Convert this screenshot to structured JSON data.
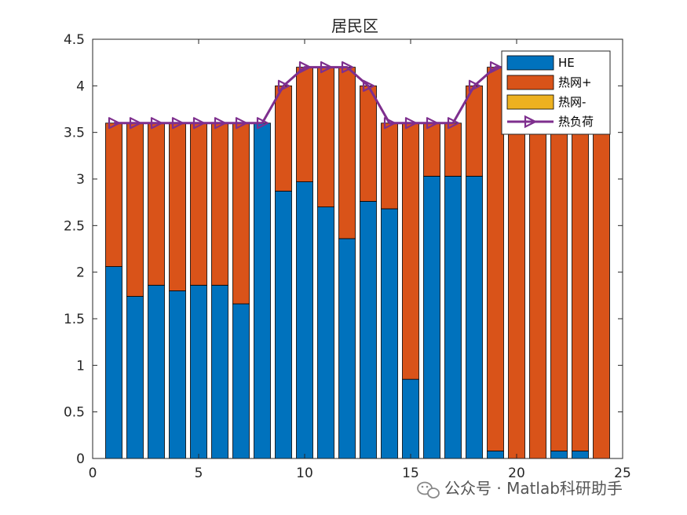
{
  "chart_data": {
    "type": "bar",
    "stacked": true,
    "title": "居民区",
    "x_ticks": [
      0,
      5,
      10,
      15,
      20,
      25
    ],
    "y_ticks": [
      0,
      0.5,
      1,
      1.5,
      2,
      2.5,
      3,
      3.5,
      4,
      4.5
    ],
    "y_tick_labels": [
      "0",
      "0.5",
      "1",
      "1.5",
      "2",
      "2.5",
      "3",
      "3.5",
      "4",
      "4.5"
    ],
    "xlim": [
      0,
      25
    ],
    "ylim": [
      0,
      4.5
    ],
    "x": [
      1,
      2,
      3,
      4,
      5,
      6,
      7,
      8,
      9,
      10,
      11,
      12,
      13,
      14,
      15,
      16,
      17,
      18,
      19,
      20,
      21,
      22,
      23,
      24
    ],
    "series": [
      {
        "name": "HE",
        "kind": "bar",
        "color": "#0072BD",
        "values": [
          2.06,
          1.74,
          1.86,
          1.8,
          1.86,
          1.86,
          1.66,
          3.6,
          2.87,
          2.97,
          2.7,
          2.36,
          2.76,
          2.68,
          0.85,
          3.03,
          3.03,
          3.03,
          0.08,
          0,
          0,
          0.08,
          0.08,
          0
        ]
      },
      {
        "name": "热网+",
        "kind": "bar",
        "color": "#D95319",
        "values": [
          1.54,
          1.86,
          1.74,
          1.8,
          1.74,
          1.74,
          1.94,
          0,
          1.13,
          1.23,
          1.5,
          1.84,
          1.24,
          0.92,
          2.75,
          0.57,
          0.57,
          0.97,
          4.12,
          4.2,
          4.2,
          4.12,
          4.12,
          4.2
        ]
      },
      {
        "name": "热网-",
        "kind": "bar",
        "color": "#EDB120",
        "values": [
          0,
          0,
          0,
          0,
          0,
          0,
          0,
          0,
          0,
          0,
          0,
          0,
          0,
          0,
          0,
          0,
          0,
          0,
          0,
          0,
          0,
          0,
          0,
          0
        ]
      },
      {
        "name": "热负荷",
        "kind": "line",
        "color": "#7E2F8E",
        "marker": "triangle-right",
        "values": [
          3.6,
          3.6,
          3.6,
          3.6,
          3.6,
          3.6,
          3.6,
          3.6,
          4.0,
          4.2,
          4.2,
          4.2,
          4.0,
          3.6,
          3.6,
          3.6,
          3.6,
          4.0,
          4.2,
          4.2,
          4.2,
          4.2,
          4.2,
          4.2
        ]
      }
    ],
    "legend_position": "top-right",
    "grid": false
  },
  "watermark": {
    "text": "公众号 · Matlab科研助手",
    "icon": "wechat-icon"
  }
}
